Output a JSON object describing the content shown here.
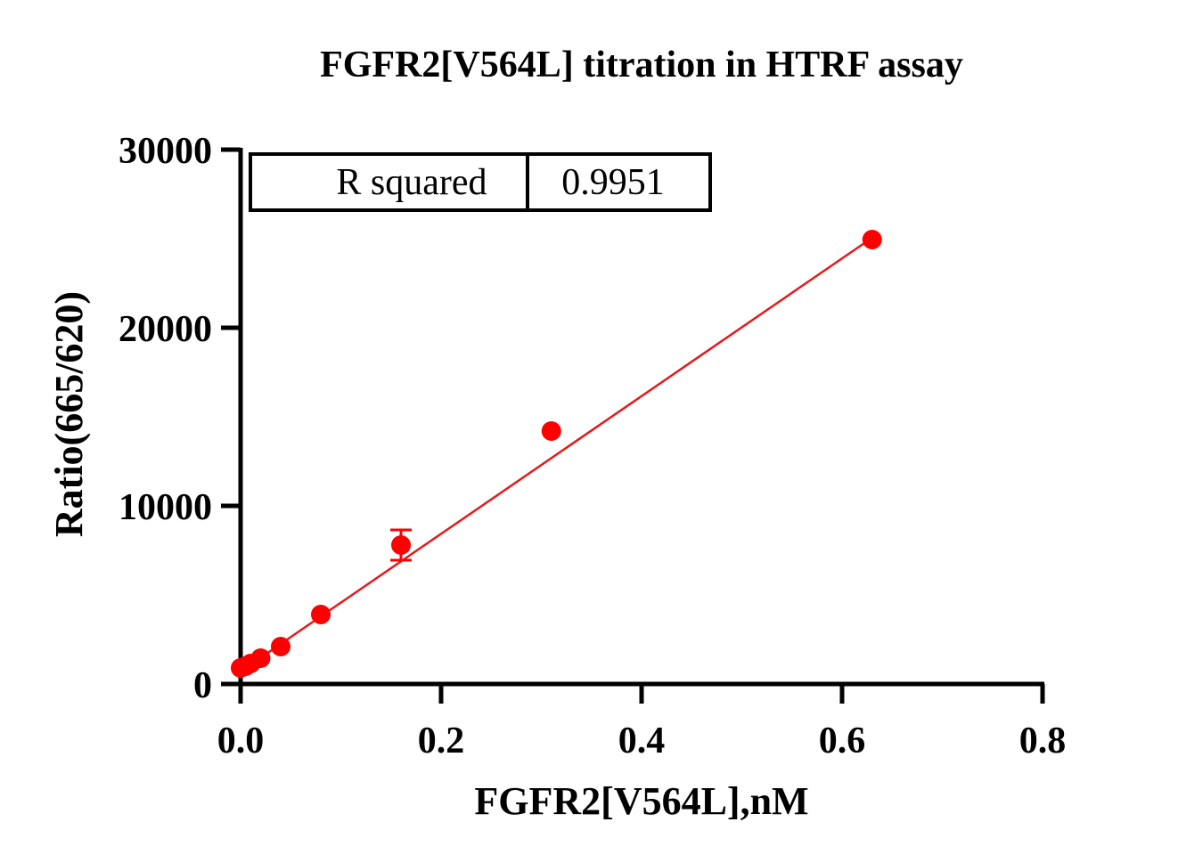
{
  "chart_data": {
    "type": "scatter",
    "title": "FGFR2[V564L] titration in HTRF assay",
    "xlabel": "FGFR2[V564L],nM",
    "ylabel": "Ratio(665/620)",
    "xlim": [
      0,
      0.8
    ],
    "ylim": [
      0,
      30000
    ],
    "x_ticks": [
      "0.0",
      "0.2",
      "0.4",
      "0.6",
      "0.8"
    ],
    "y_ticks": [
      "0",
      "10000",
      "20000",
      "30000"
    ],
    "grid": false,
    "color": "#ff0000",
    "fit_color": "#e31a1c",
    "points": [
      {
        "x": 0.0,
        "y": 900
      },
      {
        "x": 0.005,
        "y": 1000
      },
      {
        "x": 0.01,
        "y": 1150
      },
      {
        "x": 0.02,
        "y": 1450
      },
      {
        "x": 0.04,
        "y": 2100
      },
      {
        "x": 0.08,
        "y": 3900
      },
      {
        "x": 0.16,
        "y": 7800,
        "err": 850
      },
      {
        "x": 0.31,
        "y": 14200
      },
      {
        "x": 0.63,
        "y": 24950
      }
    ],
    "fit_line": {
      "x": [
        0.0,
        0.63
      ],
      "y": [
        700,
        25050
      ]
    },
    "stats_table": {
      "label": "R squared",
      "value": "0.9951"
    }
  }
}
